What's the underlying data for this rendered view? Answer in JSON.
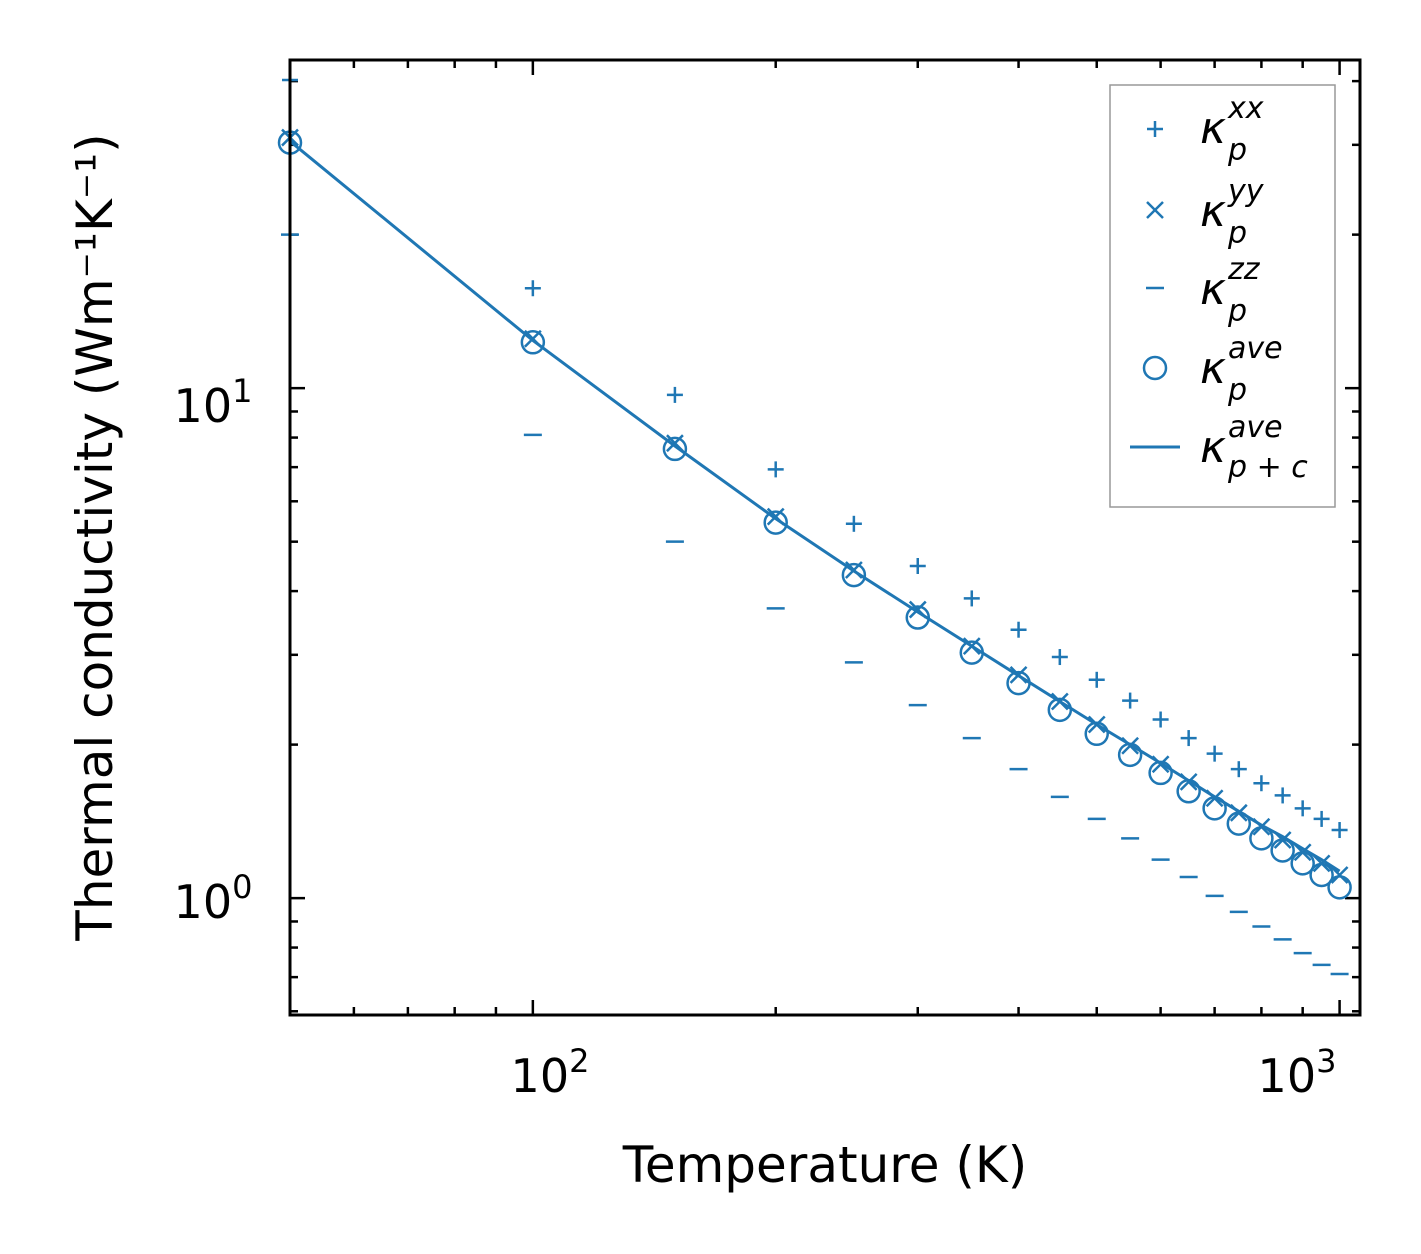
{
  "chart_data": {
    "type": "scatter",
    "xscale": "log",
    "yscale": "log",
    "xlim": [
      50,
      1060
    ],
    "ylim": [
      0.59,
      44
    ],
    "xlabel": "Temperature (K)",
    "ylabel": "Thermal conductivity (Wm⁻¹K⁻¹)",
    "x_tick_labels": [
      {
        "base": "10",
        "exp": "2"
      },
      {
        "base": "10",
        "exp": "3"
      }
    ],
    "y_tick_labels": [
      {
        "base": "10",
        "exp": "0"
      },
      {
        "base": "10",
        "exp": "1"
      }
    ],
    "color": "#1f77b4",
    "legend_position": "upper right",
    "series": [
      {
        "name": "kappa_p_xx",
        "legend_label": {
          "symbol": "κ",
          "sub": "p",
          "sup": "xx"
        },
        "marker": "plus",
        "x": [
          50,
          100,
          150,
          200,
          250,
          300,
          350,
          400,
          450,
          500,
          550,
          600,
          650,
          700,
          750,
          800,
          850,
          900,
          950,
          1000
        ],
        "values": [
          40.2,
          15.7,
          9.7,
          6.93,
          5.42,
          4.48,
          3.87,
          3.36,
          2.97,
          2.68,
          2.44,
          2.24,
          2.06,
          1.92,
          1.79,
          1.68,
          1.59,
          1.5,
          1.43,
          1.36
        ]
      },
      {
        "name": "kappa_p_yy",
        "legend_label": {
          "symbol": "κ",
          "sub": "p",
          "sup": "yy"
        },
        "marker": "x",
        "x": [
          50,
          100,
          150,
          200,
          250,
          300,
          350,
          400,
          450,
          500,
          550,
          600,
          650,
          700,
          750,
          800,
          850,
          900,
          950,
          1000
        ],
        "values": [
          31.0,
          12.5,
          7.8,
          5.6,
          4.4,
          3.68,
          3.12,
          2.74,
          2.43,
          2.19,
          1.99,
          1.83,
          1.69,
          1.57,
          1.47,
          1.38,
          1.3,
          1.23,
          1.17,
          1.11
        ]
      },
      {
        "name": "kappa_p_zz",
        "legend_label": {
          "symbol": "κ",
          "sub": "p",
          "sup": "zz"
        },
        "marker": "hline",
        "x": [
          50,
          100,
          150,
          200,
          250,
          300,
          350,
          400,
          450,
          500,
          550,
          600,
          650,
          700,
          750,
          800,
          850,
          900,
          950,
          1000
        ],
        "values": [
          20.0,
          8.1,
          5.0,
          3.7,
          2.9,
          2.39,
          2.06,
          1.79,
          1.58,
          1.43,
          1.31,
          1.19,
          1.1,
          1.01,
          0.94,
          0.88,
          0.83,
          0.78,
          0.74,
          0.71
        ]
      },
      {
        "name": "kappa_p_ave",
        "legend_label": {
          "symbol": "κ",
          "sub": "p",
          "sup": "ave"
        },
        "marker": "circle",
        "x": [
          50,
          100,
          150,
          200,
          250,
          300,
          350,
          400,
          450,
          500,
          550,
          600,
          650,
          700,
          750,
          800,
          850,
          900,
          950,
          1000
        ],
        "values": [
          30.3,
          12.3,
          7.6,
          5.45,
          4.3,
          3.55,
          3.03,
          2.64,
          2.34,
          2.1,
          1.91,
          1.76,
          1.62,
          1.5,
          1.4,
          1.31,
          1.24,
          1.17,
          1.11,
          1.05
        ]
      },
      {
        "name": "kappa_p_plus_c_ave",
        "legend_label": {
          "symbol": "κ",
          "sub": "p + c",
          "sup": "ave"
        },
        "marker": "line",
        "x": [
          50,
          100,
          150,
          200,
          250,
          300,
          350,
          400,
          450,
          500,
          550,
          600,
          650,
          700,
          750,
          800,
          850,
          900,
          950,
          1000
        ],
        "values": [
          30.5,
          12.4,
          7.7,
          5.55,
          4.38,
          3.64,
          3.12,
          2.73,
          2.43,
          2.19,
          2.0,
          1.84,
          1.7,
          1.58,
          1.48,
          1.39,
          1.32,
          1.25,
          1.19,
          1.13
        ]
      }
    ]
  }
}
